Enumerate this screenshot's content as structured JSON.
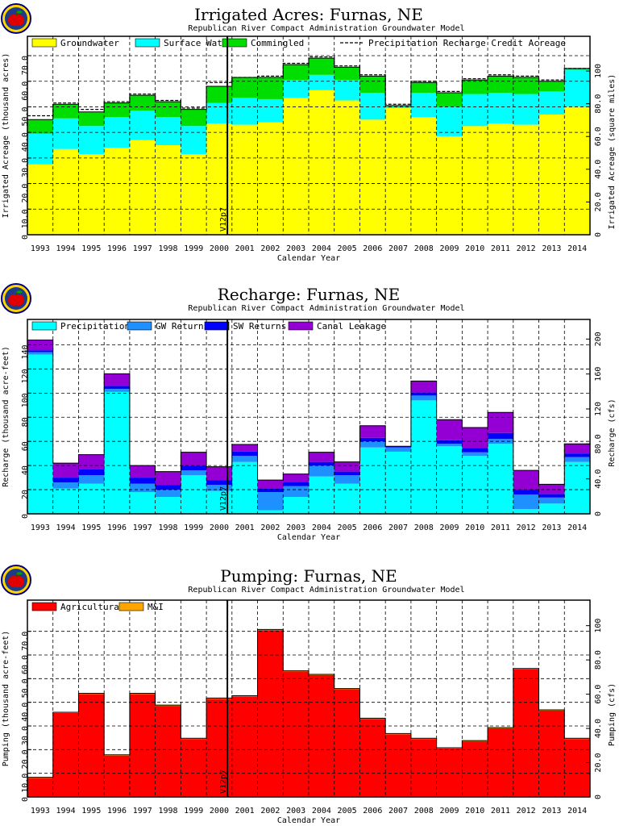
{
  "chart_data": [
    {
      "type": "area",
      "title": "Irrigated Acres: Furnas, NE",
      "subtitle": "Republican River Compact Administration Groundwater Model",
      "xlabel": "Calendar Year",
      "ylabel": "Irrigated Acreage (thousand acres)",
      "y2label": "Irrigated Acreage (square miles)",
      "categories": [
        "1993",
        "1994",
        "1995",
        "1996",
        "1997",
        "1998",
        "1999",
        "2000",
        "2001",
        "2002",
        "2003",
        "2004",
        "2005",
        "2006",
        "2007",
        "2008",
        "2009",
        "2010",
        "2011",
        "2012",
        "2013",
        "2014"
      ],
      "ylim": [
        0,
        70
      ],
      "yticks": [
        "0",
        "10.0",
        "20.0",
        "30.0",
        "40.0",
        "50.0",
        "60.0",
        "70.0"
      ],
      "y2lim": [
        0,
        109.375
      ],
      "y2ticks": [
        {
          "v": 0,
          "label": "0"
        },
        {
          "v": 20,
          "label": "20.0"
        },
        {
          "v": 40,
          "label": "40.0"
        },
        {
          "v": 60,
          "label": "60.0"
        },
        {
          "v": 80,
          "label": "80.0"
        },
        {
          "v": 100,
          "label": "100"
        }
      ],
      "legend": [
        "Groundwater",
        "Surface Water",
        "Commingled",
        "Precipitation Recharge Credit Acreage"
      ],
      "vline_label": "V12p7",
      "series": [
        {
          "name": "Groundwater",
          "color": "#ffff00",
          "values": [
            27.5,
            33.5,
            31.5,
            34.0,
            37.0,
            35.0,
            31.5,
            43.5,
            43.0,
            44.0,
            53.5,
            56.5,
            52.5,
            45.0,
            49.5,
            46.0,
            38.5,
            42.5,
            43.5,
            43.0,
            47.0,
            50.0
          ]
        },
        {
          "name": "Surface Water",
          "color": "#00ffff",
          "values": [
            12.0,
            12.0,
            11.0,
            12.0,
            11.5,
            11.0,
            11.0,
            8.0,
            10.5,
            9.0,
            7.0,
            6.0,
            8.0,
            10.5,
            0.5,
            9.5,
            11.5,
            12.5,
            12.0,
            12.0,
            9.0,
            14.5
          ]
        },
        {
          "name": "Commingled",
          "color": "#00dd00",
          "values": [
            5.5,
            5.5,
            5.5,
            5.5,
            6.0,
            6.0,
            6.5,
            6.5,
            8.0,
            8.5,
            6.0,
            6.5,
            5.0,
            6.5,
            0.5,
            4.0,
            5.5,
            5.5,
            6.5,
            6.5,
            4.0,
            0.5
          ]
        }
      ],
      "precip_line": [
        46.5,
        51.5,
        49.0,
        52.0,
        55.0,
        52.5,
        49.5,
        59.5,
        61.5,
        62.0,
        67.0,
        69.5,
        66.0,
        62.5,
        51.0,
        60.0,
        56.0,
        61.0,
        62.5,
        62.0,
        60.5,
        65.0
      ]
    },
    {
      "type": "area",
      "title": "Recharge: Furnas, NE",
      "subtitle": "Republican River Compact Administration Groundwater Model",
      "xlabel": "Calendar Year",
      "ylabel": "Recharge (thousand acre-feet)",
      "y2label": "Recharge (cfs)",
      "categories": [
        "1993",
        "1994",
        "1995",
        "1996",
        "1997",
        "1998",
        "1999",
        "2000",
        "2001",
        "2002",
        "2003",
        "2004",
        "2005",
        "2006",
        "2007",
        "2008",
        "2009",
        "2010",
        "2011",
        "2012",
        "2013",
        "2014"
      ],
      "ylim": [
        0,
        145
      ],
      "yticks": [
        "0",
        "20",
        "40",
        "60",
        "80",
        "100",
        "120",
        "140"
      ],
      "y2lim": [
        0,
        200.3
      ],
      "y2ticks": [
        {
          "v": 0,
          "label": "0"
        },
        {
          "v": 40,
          "label": "40.0"
        },
        {
          "v": 80,
          "label": "80.0"
        },
        {
          "v": 120,
          "label": "120"
        },
        {
          "v": 160,
          "label": "160"
        },
        {
          "v": 200,
          "label": "200"
        }
      ],
      "legend": [
        "Precipitation",
        "GW Returns",
        "SW Returns",
        "Canal Leakage"
      ],
      "vline_label": "V12p7",
      "series": [
        {
          "name": "Precipitation",
          "color": "#00ffff",
          "values": [
            132.0,
            21.0,
            25.0,
            101.0,
            18.0,
            14.0,
            32.0,
            19.0,
            43.0,
            3.0,
            14.0,
            31.0,
            25.0,
            55.0,
            51.5,
            94.0,
            56.0,
            48.0,
            58.0,
            4.0,
            8.5,
            43.0
          ]
        },
        {
          "name": "GW Returns",
          "color": "#1e90ff",
          "values": [
            2.0,
            5.0,
            7.0,
            2.5,
            7.0,
            6.0,
            4.0,
            5.0,
            5.0,
            15.0,
            9.0,
            9.0,
            7.0,
            5.0,
            3.5,
            4.0,
            2.0,
            3.0,
            4.0,
            12.0,
            5.0,
            4.0
          ]
        },
        {
          "name": "SW Returns",
          "color": "#0000ff",
          "values": [
            1.5,
            4.0,
            5.0,
            2.5,
            5.0,
            4.0,
            4.0,
            4.0,
            3.5,
            3.0,
            3.5,
            3.0,
            3.0,
            3.0,
            1.0,
            2.5,
            3.0,
            3.5,
            5.0,
            4.0,
            3.0,
            3.0
          ]
        },
        {
          "name": "Canal Leakage",
          "color": "#9400d3",
          "values": [
            8.5,
            12.0,
            12.0,
            10.0,
            10.0,
            11.0,
            11.0,
            11.0,
            6.0,
            7.0,
            6.5,
            8.0,
            8.0,
            10.0,
            0.0,
            9.5,
            17.0,
            17.0,
            17.0,
            16.0,
            8.0,
            8.0
          ]
        }
      ]
    },
    {
      "type": "area",
      "title": "Pumping: Furnas, NE",
      "subtitle": "Republican River Compact Administration Groundwater Model",
      "xlabel": "Calendar Year",
      "ylabel": "Pumping (thousand acre-feet)",
      "y2label": "Pumping (cfs)",
      "categories": [
        "1993",
        "1994",
        "1995",
        "1996",
        "1997",
        "1998",
        "1999",
        "2000",
        "2001",
        "2002",
        "2003",
        "2004",
        "2005",
        "2006",
        "2007",
        "2008",
        "2009",
        "2010",
        "2011",
        "2012",
        "2013",
        "2014"
      ],
      "ylim": [
        0,
        75
      ],
      "yticks": [
        "0",
        "10.0",
        "20.0",
        "30.0",
        "40.0",
        "50.0",
        "60.0",
        "70.0"
      ],
      "y2lim": [
        0,
        103.6
      ],
      "y2ticks": [
        {
          "v": 0,
          "label": "0"
        },
        {
          "v": 20,
          "label": "20.0"
        },
        {
          "v": 40,
          "label": "40.0"
        },
        {
          "v": 60,
          "label": "60.0"
        },
        {
          "v": 80,
          "label": "80.0"
        },
        {
          "v": 100,
          "label": "100"
        }
      ],
      "legend": [
        "Agricultural",
        "M&I"
      ],
      "vline_label": "V12p7",
      "series": [
        {
          "name": "Agricultural",
          "color": "#ff0000",
          "values": [
            8.0,
            35.5,
            43.5,
            17.5,
            43.5,
            38.5,
            24.5,
            41.5,
            42.5,
            70.5,
            53.0,
            51.5,
            45.5,
            33.0,
            26.5,
            24.5,
            20.5,
            23.5,
            29.0,
            54.0,
            36.5,
            24.5
          ]
        },
        {
          "name": "M&I",
          "color": "#ffa500",
          "values": [
            0.3,
            0.3,
            0.3,
            0.3,
            0.3,
            0.3,
            0.3,
            0.3,
            0.3,
            0.3,
            0.3,
            0.3,
            0.3,
            0.3,
            0.3,
            0.3,
            0.3,
            0.3,
            0.3,
            0.3,
            0.3,
            0.3
          ]
        }
      ]
    }
  ]
}
